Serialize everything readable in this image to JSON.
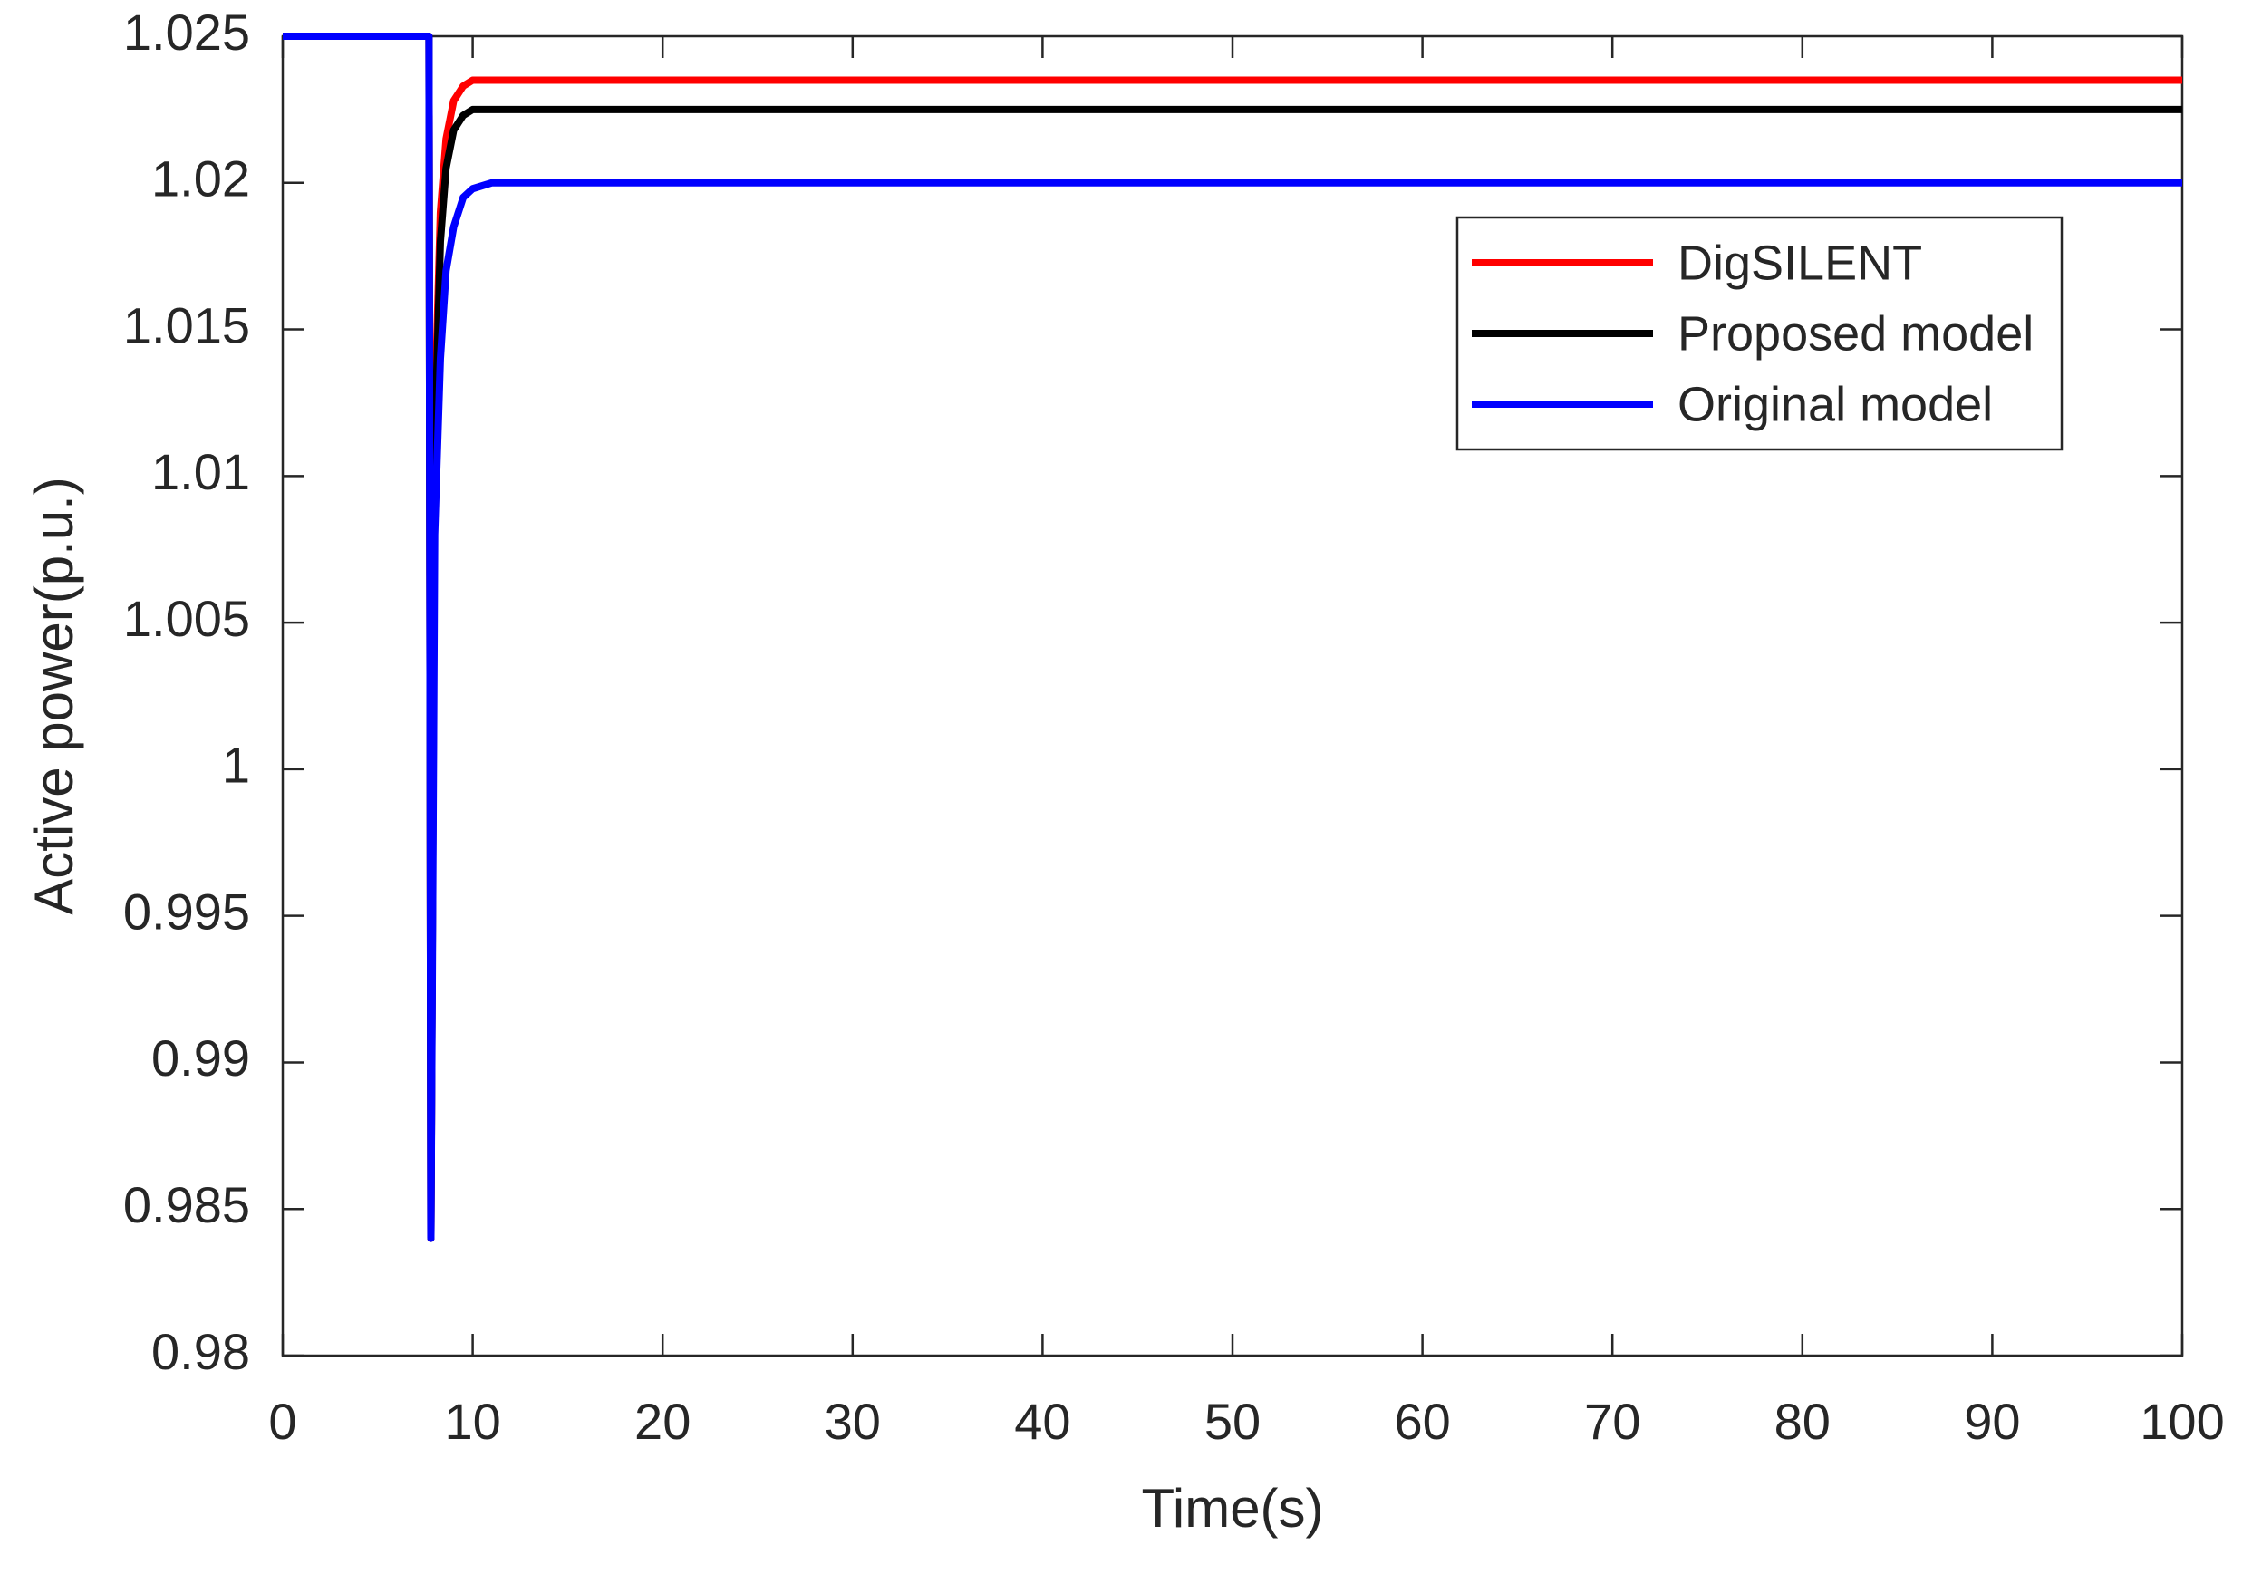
{
  "chart_data": {
    "type": "line",
    "xlabel": "Time(s)",
    "ylabel": "Active power(p.u.)",
    "x": [
      0,
      7.7,
      7.8,
      8.0,
      8.3,
      8.6,
      9.0,
      9.5,
      10,
      11,
      100
    ],
    "series": [
      {
        "name": "DigSILENT",
        "color": "#ff0000",
        "values": [
          1.025,
          1.025,
          0.984,
          1.012,
          1.019,
          1.0215,
          1.0228,
          1.0233,
          1.0235,
          1.0235,
          1.0235
        ]
      },
      {
        "name": "Proposed model",
        "color": "#000000",
        "values": [
          1.025,
          1.025,
          0.984,
          1.011,
          1.018,
          1.0205,
          1.0218,
          1.0223,
          1.0225,
          1.0225,
          1.0225
        ]
      },
      {
        "name": "Original model",
        "color": "#0000ff",
        "values": [
          1.025,
          1.025,
          0.984,
          1.008,
          1.014,
          1.017,
          1.0185,
          1.0195,
          1.0198,
          1.02,
          1.02
        ]
      }
    ],
    "xlim": [
      0,
      100
    ],
    "xticks": [
      0,
      10,
      20,
      30,
      40,
      50,
      60,
      70,
      80,
      90,
      100
    ],
    "ylim": [
      0.98,
      1.025
    ],
    "yticks": [
      0.98,
      0.985,
      0.99,
      0.995,
      1,
      1.005,
      1.01,
      1.015,
      1.02,
      1.025
    ],
    "legend": "upper right"
  }
}
